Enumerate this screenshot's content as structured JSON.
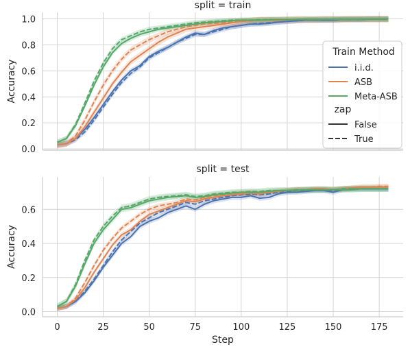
{
  "chart_data": [
    {
      "type": "line",
      "title": "split = train",
      "xlabel": "",
      "ylabel": "Accuracy",
      "xlim": [
        -8,
        188
      ],
      "ylim": [
        -0.01,
        1.05
      ],
      "xticks": [
        0,
        25,
        50,
        75,
        100,
        125,
        150,
        175
      ],
      "xtick_labels": [
        "",
        "",
        "",
        "",
        "",
        "",
        "",
        ""
      ],
      "yticks": [
        0.0,
        0.2,
        0.4,
        0.6,
        0.8,
        1.0
      ],
      "ytick_labels": [
        "0.0",
        "0.2",
        "0.4",
        "0.6",
        "0.8",
        "1.0"
      ],
      "grid": true,
      "legend": "right",
      "x": [
        0,
        5,
        10,
        15,
        20,
        25,
        30,
        35,
        40,
        45,
        50,
        55,
        60,
        65,
        70,
        75,
        80,
        85,
        90,
        95,
        100,
        105,
        110,
        115,
        120,
        125,
        130,
        135,
        140,
        145,
        150,
        155,
        160,
        165,
        170,
        175,
        180
      ],
      "series": [
        {
          "method": "i.i.d.",
          "zap": "False",
          "values": [
            0.03,
            0.04,
            0.08,
            0.15,
            0.24,
            0.34,
            0.44,
            0.53,
            0.6,
            0.64,
            0.71,
            0.75,
            0.78,
            0.82,
            0.86,
            0.89,
            0.88,
            0.91,
            0.93,
            0.94,
            0.95,
            0.96,
            0.96,
            0.965,
            0.975,
            0.98,
            0.985,
            0.99,
            0.99,
            0.99,
            0.99,
            0.995,
            0.995,
            0.995,
            0.998,
            0.998,
            0.998
          ],
          "band": 0.02
        },
        {
          "method": "i.i.d.",
          "zap": "True",
          "values": [
            0.03,
            0.04,
            0.07,
            0.13,
            0.22,
            0.32,
            0.42,
            0.51,
            0.58,
            0.63,
            0.7,
            0.74,
            0.78,
            0.82,
            0.85,
            0.88,
            0.88,
            0.9,
            0.92,
            0.94,
            0.95,
            0.96,
            0.965,
            0.97,
            0.975,
            0.98,
            0.985,
            0.99,
            0.99,
            0.99,
            0.99,
            0.995,
            0.995,
            0.995,
            0.998,
            0.998,
            0.998
          ],
          "band": 0.02
        },
        {
          "method": "ASB",
          "zap": "False",
          "values": [
            0.03,
            0.04,
            0.08,
            0.17,
            0.28,
            0.39,
            0.5,
            0.59,
            0.67,
            0.72,
            0.77,
            0.82,
            0.86,
            0.89,
            0.92,
            0.93,
            0.94,
            0.95,
            0.96,
            0.97,
            0.98,
            0.985,
            0.99,
            0.99,
            0.99,
            0.993,
            0.995,
            0.995,
            0.995,
            0.997,
            0.997,
            0.997,
            0.998,
            0.998,
            0.998,
            0.998,
            0.998
          ],
          "band": 0.025
        },
        {
          "method": "ASB",
          "zap": "True",
          "values": [
            0.03,
            0.04,
            0.1,
            0.22,
            0.36,
            0.49,
            0.6,
            0.69,
            0.76,
            0.8,
            0.84,
            0.87,
            0.9,
            0.92,
            0.94,
            0.95,
            0.96,
            0.965,
            0.97,
            0.975,
            0.98,
            0.985,
            0.99,
            0.99,
            0.99,
            0.993,
            0.995,
            0.995,
            0.995,
            0.997,
            0.997,
            0.997,
            0.998,
            0.998,
            0.998,
            0.998,
            0.998
          ],
          "band": 0.025
        },
        {
          "method": "Meta-ASB",
          "zap": "False",
          "values": [
            0.05,
            0.08,
            0.18,
            0.33,
            0.49,
            0.63,
            0.74,
            0.81,
            0.85,
            0.88,
            0.9,
            0.92,
            0.93,
            0.94,
            0.95,
            0.96,
            0.97,
            0.975,
            0.98,
            0.985,
            0.99,
            0.99,
            0.99,
            0.993,
            0.995,
            0.995,
            0.995,
            0.997,
            0.997,
            0.997,
            0.998,
            0.998,
            0.998,
            0.998,
            0.999,
            0.999,
            0.999
          ],
          "band": 0.02
        },
        {
          "method": "Meta-ASB",
          "zap": "True",
          "values": [
            0.05,
            0.08,
            0.19,
            0.35,
            0.52,
            0.66,
            0.77,
            0.84,
            0.87,
            0.9,
            0.92,
            0.93,
            0.94,
            0.95,
            0.96,
            0.97,
            0.975,
            0.98,
            0.985,
            0.99,
            0.99,
            0.99,
            0.993,
            0.995,
            0.995,
            0.995,
            0.997,
            0.997,
            0.997,
            0.998,
            0.998,
            0.998,
            0.998,
            0.999,
            0.999,
            0.999,
            0.999
          ],
          "band": 0.02
        }
      ]
    },
    {
      "type": "line",
      "title": "split = test",
      "xlabel": "Step",
      "ylabel": "Accuracy",
      "xlim": [
        -8,
        188
      ],
      "ylim": [
        -0.03,
        0.79
      ],
      "xticks": [
        0,
        25,
        50,
        75,
        100,
        125,
        150,
        175
      ],
      "xtick_labels": [
        "0",
        "25",
        "50",
        "75",
        "100",
        "125",
        "150",
        "175"
      ],
      "yticks": [
        0.0,
        0.2,
        0.4,
        0.6
      ],
      "ytick_labels": [
        "0.0",
        "0.2",
        "0.4",
        "0.6"
      ],
      "grid": true,
      "x": [
        0,
        5,
        10,
        15,
        20,
        25,
        30,
        35,
        40,
        45,
        50,
        55,
        60,
        65,
        70,
        75,
        80,
        85,
        90,
        95,
        100,
        105,
        110,
        115,
        120,
        125,
        130,
        135,
        140,
        145,
        150,
        155,
        160,
        165,
        170,
        175,
        180
      ],
      "series": [
        {
          "method": "i.i.d.",
          "zap": "False",
          "values": [
            0.02,
            0.03,
            0.06,
            0.11,
            0.18,
            0.26,
            0.33,
            0.4,
            0.44,
            0.5,
            0.53,
            0.55,
            0.58,
            0.6,
            0.62,
            0.6,
            0.63,
            0.65,
            0.66,
            0.67,
            0.67,
            0.68,
            0.665,
            0.67,
            0.69,
            0.7,
            0.7,
            0.705,
            0.71,
            0.71,
            0.7,
            0.715,
            0.72,
            0.72,
            0.72,
            0.72,
            0.72
          ],
          "band": 0.015
        },
        {
          "method": "i.i.d.",
          "zap": "True",
          "values": [
            0.02,
            0.03,
            0.06,
            0.12,
            0.19,
            0.27,
            0.35,
            0.42,
            0.47,
            0.52,
            0.55,
            0.58,
            0.6,
            0.62,
            0.64,
            0.63,
            0.65,
            0.66,
            0.67,
            0.68,
            0.685,
            0.69,
            0.685,
            0.69,
            0.7,
            0.705,
            0.71,
            0.71,
            0.715,
            0.715,
            0.71,
            0.72,
            0.72,
            0.72,
            0.72,
            0.72,
            0.72
          ],
          "band": 0.015
        },
        {
          "method": "ASB",
          "zap": "False",
          "values": [
            0.02,
            0.03,
            0.07,
            0.14,
            0.23,
            0.31,
            0.39,
            0.45,
            0.48,
            0.53,
            0.57,
            0.59,
            0.61,
            0.63,
            0.65,
            0.645,
            0.66,
            0.67,
            0.68,
            0.685,
            0.69,
            0.695,
            0.69,
            0.7,
            0.705,
            0.71,
            0.715,
            0.715,
            0.72,
            0.72,
            0.715,
            0.72,
            0.725,
            0.73,
            0.73,
            0.73,
            0.73
          ],
          "band": 0.015
        },
        {
          "method": "ASB",
          "zap": "True",
          "values": [
            0.02,
            0.03,
            0.08,
            0.17,
            0.27,
            0.36,
            0.43,
            0.49,
            0.53,
            0.57,
            0.6,
            0.62,
            0.63,
            0.64,
            0.66,
            0.655,
            0.67,
            0.68,
            0.685,
            0.69,
            0.695,
            0.7,
            0.695,
            0.7,
            0.705,
            0.71,
            0.715,
            0.715,
            0.72,
            0.72,
            0.715,
            0.72,
            0.725,
            0.73,
            0.73,
            0.735,
            0.735
          ],
          "band": 0.015
        },
        {
          "method": "Meta-ASB",
          "zap": "False",
          "values": [
            0.03,
            0.06,
            0.15,
            0.28,
            0.4,
            0.48,
            0.54,
            0.6,
            0.61,
            0.63,
            0.65,
            0.66,
            0.67,
            0.675,
            0.68,
            0.67,
            0.675,
            0.685,
            0.69,
            0.695,
            0.7,
            0.7,
            0.7,
            0.705,
            0.71,
            0.71,
            0.71,
            0.715,
            0.715,
            0.715,
            0.715,
            0.715,
            0.715,
            0.72,
            0.72,
            0.72,
            0.72
          ],
          "band": 0.018
        },
        {
          "method": "Meta-ASB",
          "zap": "True",
          "values": [
            0.03,
            0.06,
            0.16,
            0.3,
            0.42,
            0.5,
            0.56,
            0.61,
            0.62,
            0.64,
            0.66,
            0.67,
            0.675,
            0.68,
            0.685,
            0.675,
            0.68,
            0.69,
            0.695,
            0.7,
            0.7,
            0.705,
            0.705,
            0.71,
            0.71,
            0.71,
            0.715,
            0.715,
            0.715,
            0.715,
            0.715,
            0.72,
            0.72,
            0.72,
            0.72,
            0.72,
            0.72
          ],
          "band": 0.018
        }
      ]
    }
  ],
  "legend": {
    "method_title": "Train Method",
    "methods": [
      {
        "label": "i.i.d.",
        "color": "#4c72b0"
      },
      {
        "label": "ASB",
        "color": "#dd8452"
      },
      {
        "label": "Meta-ASB",
        "color": "#55a868"
      }
    ],
    "style_title": "zap",
    "styles": [
      {
        "label": "False",
        "dash": "solid"
      },
      {
        "label": "True",
        "dash": "dashed"
      }
    ]
  },
  "colors": {
    "i.i.d.": "#4c72b0",
    "ASB": "#dd8452",
    "Meta-ASB": "#55a868",
    "grid": "#d3d3d3",
    "text": "#262626"
  }
}
